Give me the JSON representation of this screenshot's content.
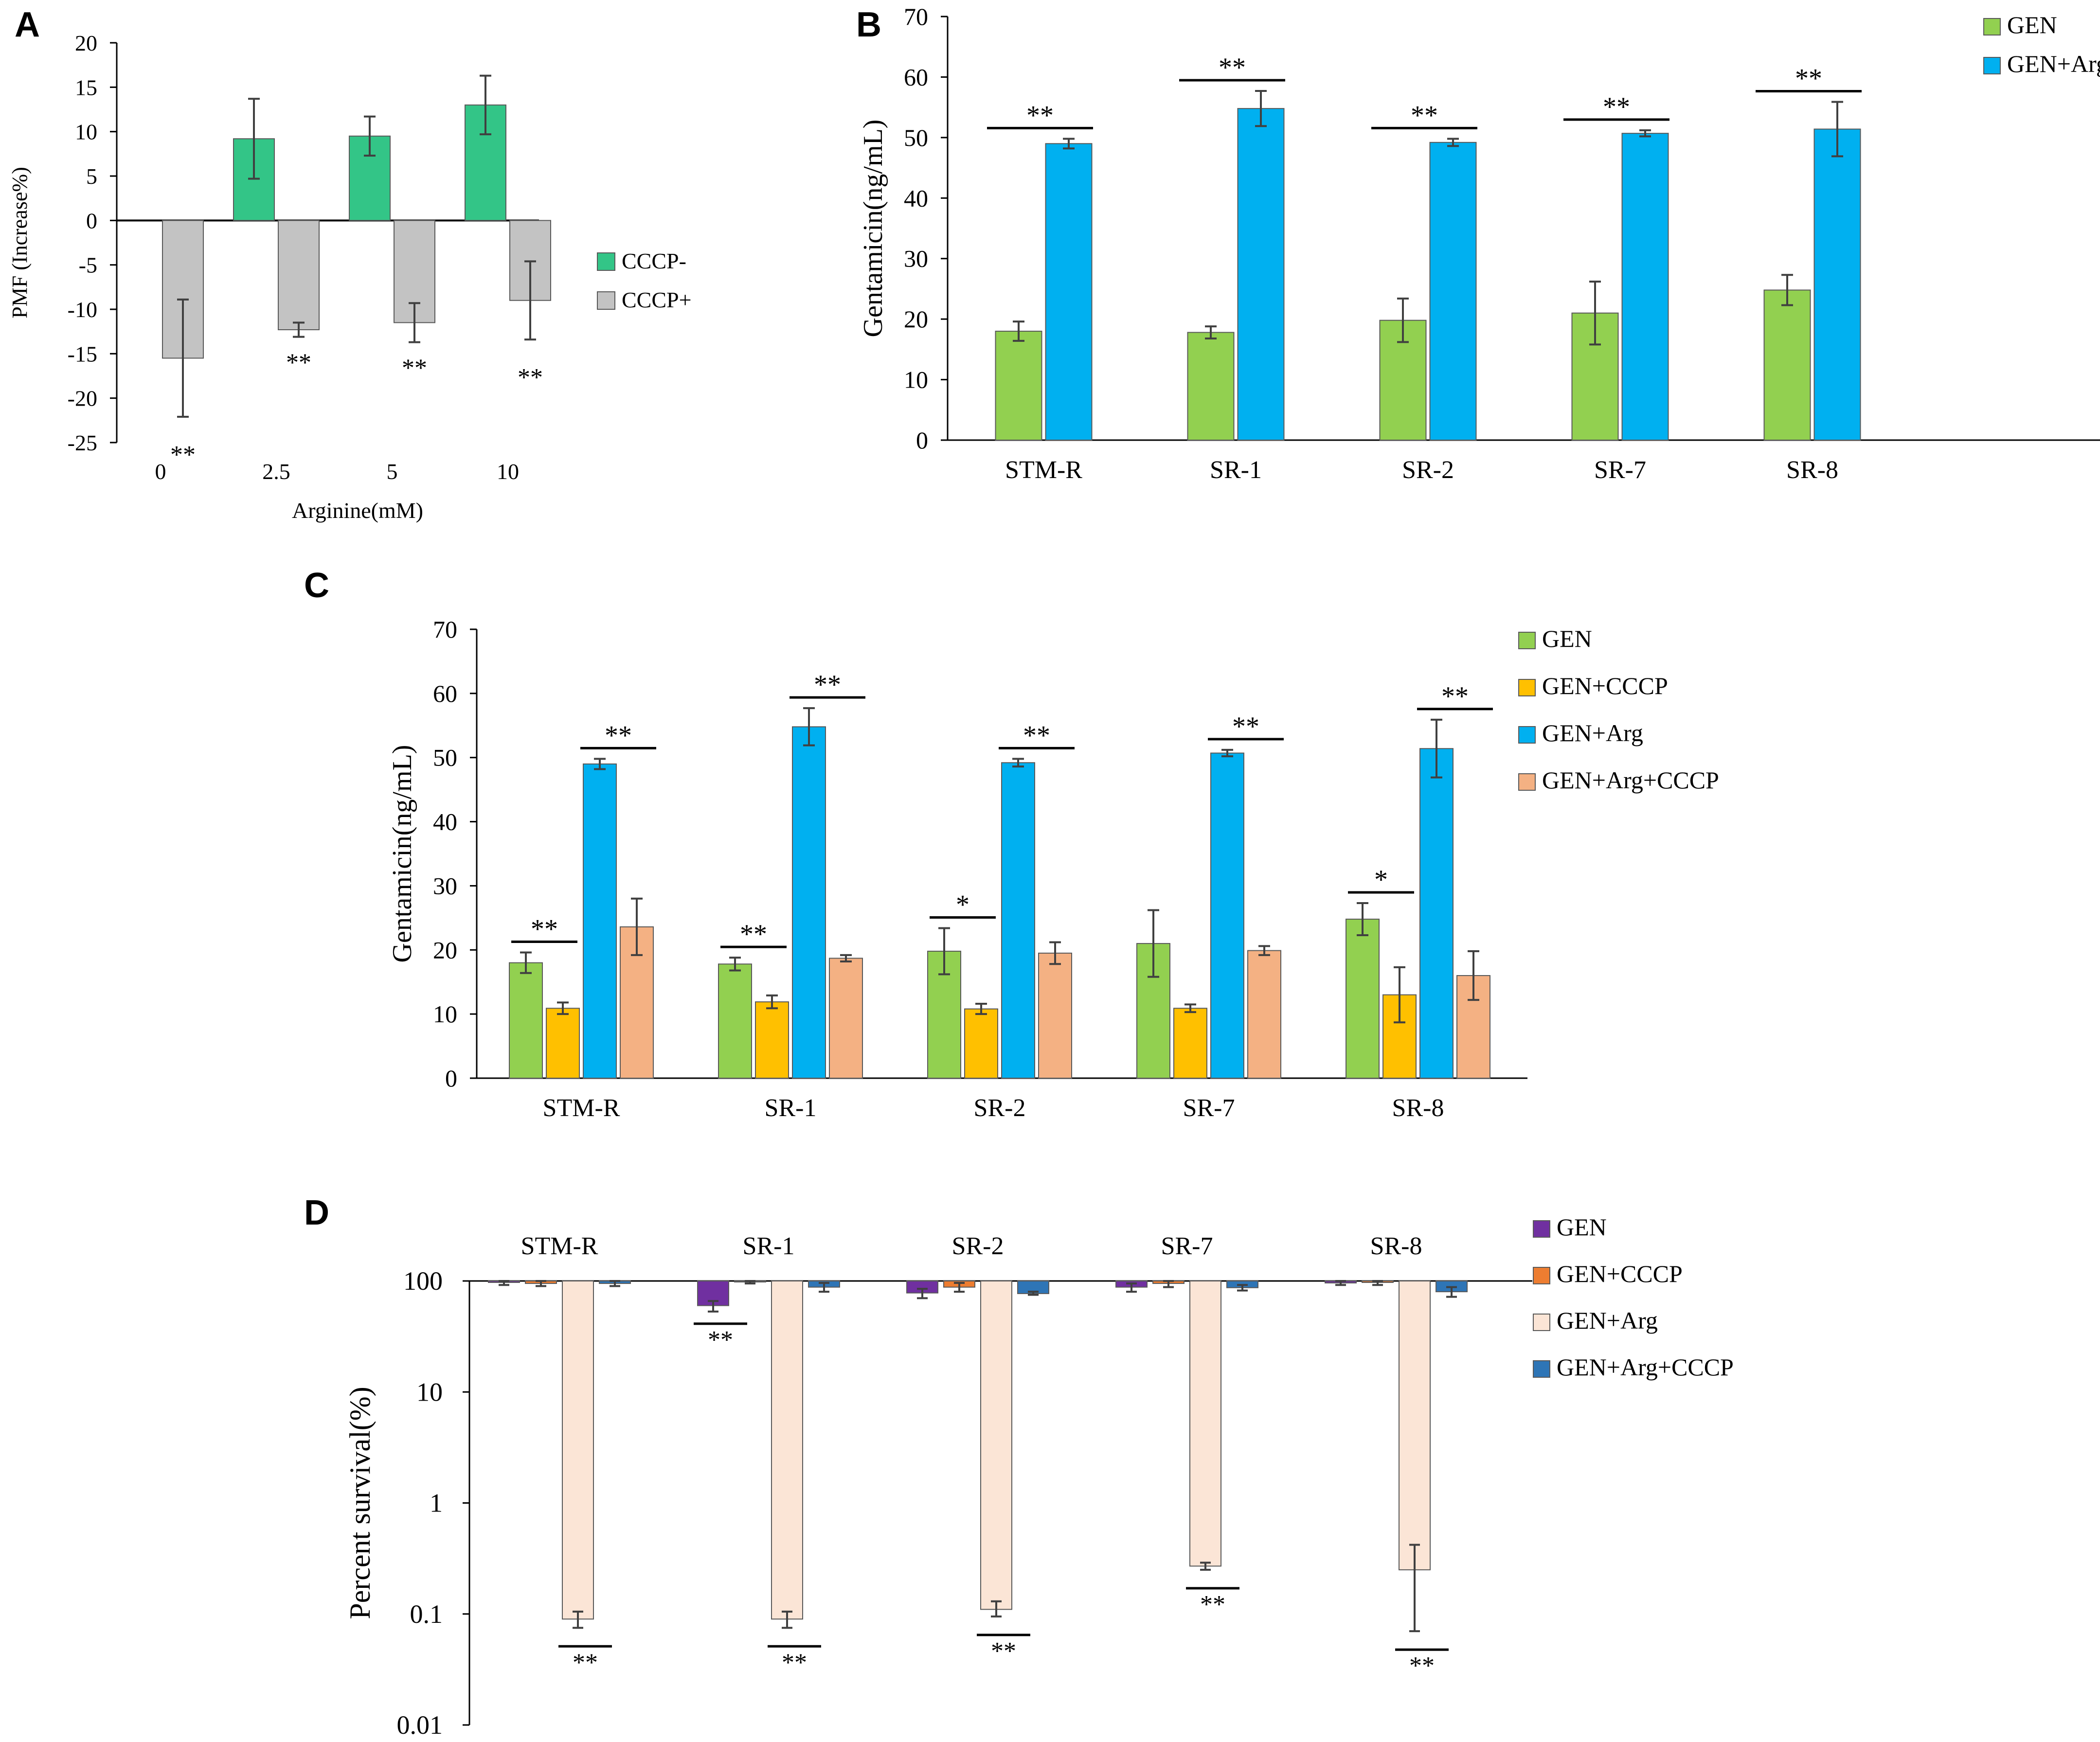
{
  "chart_data": [
    {
      "panel": "A",
      "type": "bar",
      "categories": [
        "0",
        "2.5",
        "5",
        "10"
      ],
      "series": [
        {
          "name": "CCCP-",
          "color": "#33c587",
          "values": [
            null,
            9.2,
            9.5,
            13.0
          ],
          "errors": [
            null,
            4.5,
            2.2,
            3.3
          ]
        },
        {
          "name": "CCCP+",
          "color": "#c3c3c3",
          "values": [
            -15.5,
            -12.3,
            -11.5,
            -9.0
          ],
          "errors": [
            6.6,
            0.8,
            2.2,
            4.4
          ]
        }
      ],
      "significance": [
        "**",
        "**",
        "**",
        "**"
      ],
      "xlabel": "Arginine(mM)",
      "ylabel": "PMF (Increase%)",
      "ylim": [
        -25,
        20
      ],
      "yticks": [
        -25,
        -20,
        -15,
        -10,
        -5,
        0,
        5,
        10,
        15,
        20
      ],
      "legend_position": "right"
    },
    {
      "panel": "B",
      "type": "bar",
      "categories": [
        "STM-R",
        "SR-1",
        "SR-2",
        "SR-7",
        "SR-8"
      ],
      "series": [
        {
          "name": "GEN",
          "color": "#92d050",
          "values": [
            18.0,
            17.8,
            19.8,
            21.0,
            24.8
          ],
          "errors": [
            1.6,
            1.0,
            3.6,
            5.2,
            2.5
          ]
        },
        {
          "name": "GEN+Arg",
          "color": "#00b0f0",
          "values": [
            49.0,
            54.8,
            49.2,
            50.7,
            51.4
          ],
          "errors": [
            0.8,
            2.9,
            0.6,
            0.5,
            4.5
          ]
        }
      ],
      "significance": [
        "**",
        "**",
        "**",
        "**",
        "**"
      ],
      "xlabel": "",
      "ylabel": "Gentamicin(ng/mL)",
      "ylim": [
        0,
        70
      ],
      "yticks": [
        0,
        10,
        20,
        30,
        40,
        50,
        60,
        70
      ],
      "legend_position": "top-right"
    },
    {
      "panel": "C",
      "type": "bar",
      "categories": [
        "STM-R",
        "SR-1",
        "SR-2",
        "SR-7",
        "SR-8"
      ],
      "series": [
        {
          "name": "GEN",
          "color": "#92d050",
          "values": [
            18.0,
            17.8,
            19.8,
            21.0,
            24.8
          ],
          "errors": [
            1.6,
            1.0,
            3.6,
            5.2,
            2.5
          ]
        },
        {
          "name": "GEN+CCCP",
          "color": "#ffc000",
          "values": [
            10.9,
            11.9,
            10.8,
            10.9,
            13.0
          ],
          "errors": [
            0.9,
            1.0,
            0.8,
            0.6,
            4.3
          ]
        },
        {
          "name": "GEN+Arg",
          "color": "#00b0f0",
          "values": [
            49.0,
            54.8,
            49.2,
            50.7,
            51.4
          ],
          "errors": [
            0.8,
            2.9,
            0.6,
            0.5,
            4.5
          ]
        },
        {
          "name": "GEN+Arg+CCCP",
          "color": "#f4b183",
          "values": [
            23.6,
            18.7,
            19.5,
            19.9,
            16.0
          ],
          "errors": [
            4.4,
            0.5,
            1.7,
            0.7,
            3.8
          ]
        }
      ],
      "significance_gen_vs_cccp": [
        "**",
        "**",
        "*",
        "",
        "*"
      ],
      "significance_arg": [
        "**",
        "**",
        "**",
        "**",
        "**"
      ],
      "xlabel": "",
      "ylabel": "Gentamicin(ng/mL)",
      "ylim": [
        0,
        70
      ],
      "yticks": [
        0,
        10,
        20,
        30,
        40,
        50,
        60,
        70
      ],
      "legend_position": "right"
    },
    {
      "panel": "D",
      "type": "bar",
      "scale": "log",
      "categories": [
        "STM-R",
        "SR-1",
        "SR-2",
        "SR-7",
        "SR-8"
      ],
      "series": [
        {
          "name": "GEN",
          "color": "#7030a0",
          "values": [
            97,
            60,
            78,
            88,
            96
          ],
          "err_low": [
            92,
            53,
            70,
            80,
            92
          ],
          "err_high": [
            100,
            66,
            85,
            95,
            100
          ]
        },
        {
          "name": "GEN+CCCP",
          "color": "#ed7d31",
          "values": [
            95,
            98,
            88,
            95,
            97
          ],
          "err_low": [
            90,
            95,
            80,
            88,
            92
          ],
          "err_high": [
            100,
            100,
            96,
            100,
            100
          ]
        },
        {
          "name": "GEN+Arg",
          "color": "#fbe5d6",
          "values": [
            0.09,
            0.09,
            0.11,
            0.27,
            0.25
          ],
          "err_low": [
            0.075,
            0.075,
            0.095,
            0.25,
            0.07
          ],
          "err_high": [
            0.105,
            0.105,
            0.13,
            0.29,
            0.42
          ]
        },
        {
          "name": "GEN+Arg+CCCP",
          "color": "#2e75b6",
          "values": [
            95,
            88,
            77,
            87,
            80
          ],
          "err_low": [
            90,
            80,
            75,
            82,
            72
          ],
          "err_high": [
            100,
            96,
            80,
            92,
            88
          ]
        }
      ],
      "significance_gen": [
        "",
        "**",
        "",
        "",
        ""
      ],
      "significance_arg": [
        "**",
        "**",
        "**",
        "**",
        "**"
      ],
      "xlabel": "",
      "ylabel": "Percent survival(%)",
      "ylim": [
        0.01,
        100
      ],
      "yticks": [
        0.01,
        0.1,
        1,
        10,
        100
      ],
      "ytick_labels": [
        "0.01",
        "0.1",
        "1",
        "10",
        "100"
      ],
      "legend_position": "right"
    }
  ]
}
